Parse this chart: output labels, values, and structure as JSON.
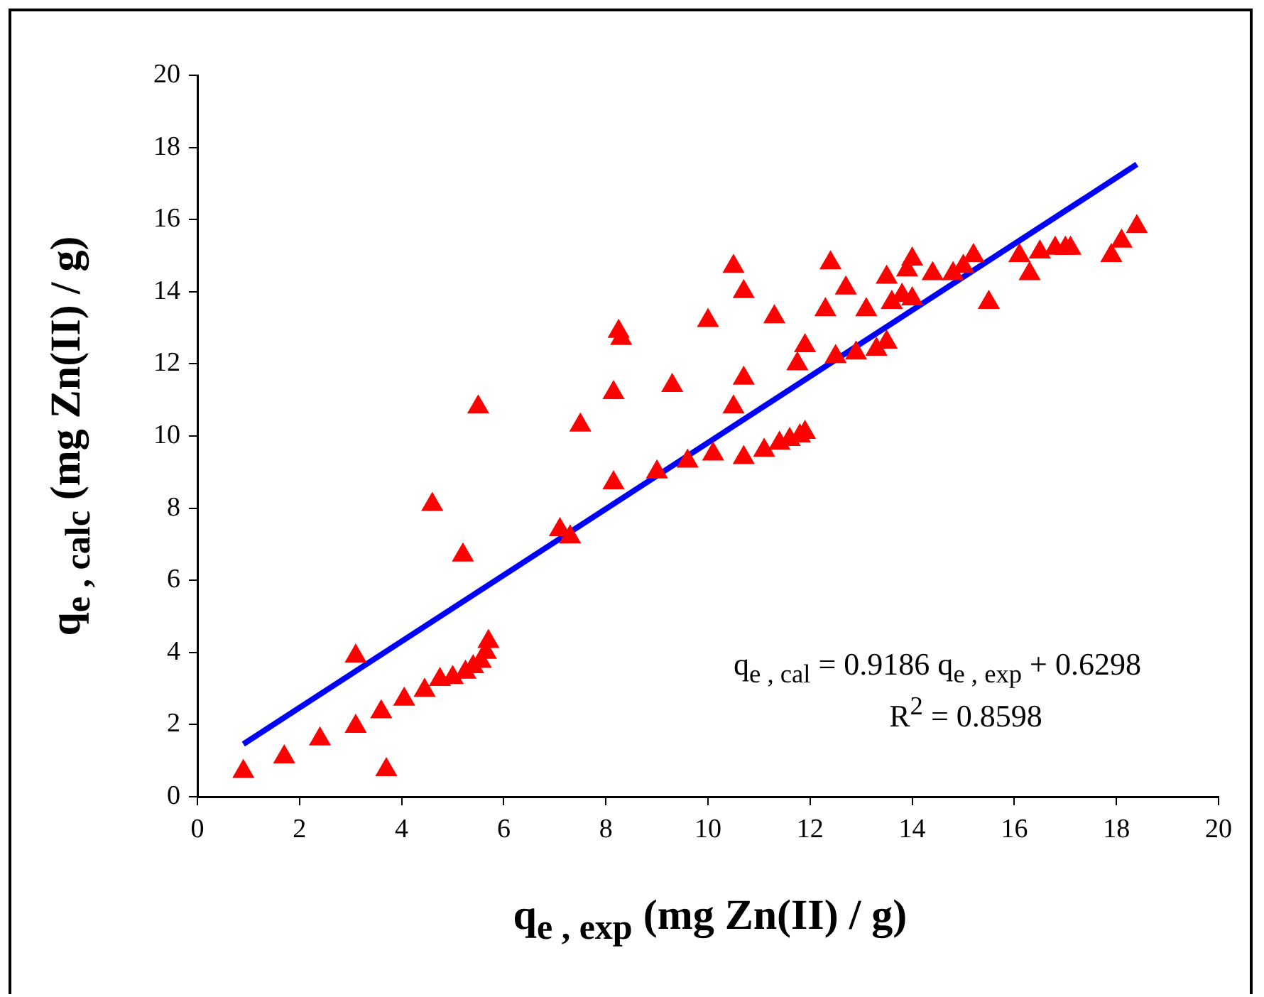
{
  "chart_data": {
    "type": "scatter",
    "xlabel": "q$_{e , exp}$  (mg  Zn(II) / g)",
    "ylabel": "q$_{e , calc}$  (mg  Zn(II) / g)",
    "xlim": [
      0,
      20
    ],
    "xticks": [
      0,
      2,
      4,
      6,
      8,
      10,
      12,
      14,
      16,
      18,
      20
    ],
    "ylim": [
      0,
      20
    ],
    "yticks": [
      0,
      2,
      4,
      6,
      8,
      10,
      12,
      14,
      16,
      18,
      20
    ],
    "grid": false,
    "legend": false,
    "marker": "triangle",
    "series": [
      {
        "color": "#ff0000",
        "x": [
          0.9,
          1.7,
          2.4,
          3.1,
          3.1,
          3.6,
          3.7,
          4.05,
          4.45,
          4.75,
          5.0,
          5.25,
          5.4,
          5.55,
          5.65,
          5.7,
          4.6,
          5.2,
          5.5,
          7.1,
          7.3,
          7.5,
          8.15,
          8.15,
          8.25,
          8.3,
          9.0,
          9.3,
          9.6,
          10.0,
          10.1,
          10.5,
          10.5,
          10.7,
          10.7,
          10.7,
          11.1,
          11.3,
          11.4,
          11.6,
          11.75,
          11.8,
          11.9,
          11.9,
          12.3,
          12.4,
          12.5,
          12.7,
          12.9,
          13.1,
          13.3,
          13.5,
          13.5,
          13.6,
          13.8,
          13.9,
          14.0,
          14.0,
          14.4,
          14.8,
          15.0,
          15.2,
          15.5,
          16.1,
          16.3,
          16.5,
          16.8,
          17.0,
          17.1,
          17.9,
          18.1,
          18.4
        ],
        "values": [
          0.7,
          1.1,
          1.6,
          1.95,
          3.9,
          2.35,
          0.75,
          2.7,
          2.95,
          3.25,
          3.3,
          3.45,
          3.6,
          3.75,
          4.0,
          4.3,
          8.1,
          6.7,
          10.8,
          7.4,
          7.2,
          10.3,
          8.7,
          11.2,
          12.9,
          12.7,
          9.0,
          11.4,
          9.3,
          13.2,
          9.5,
          14.7,
          10.8,
          14.0,
          11.6,
          9.4,
          9.6,
          13.3,
          9.8,
          9.9,
          12.0,
          10.0,
          12.5,
          10.1,
          13.5,
          14.8,
          12.2,
          14.1,
          12.3,
          13.5,
          12.4,
          12.6,
          14.4,
          13.7,
          13.9,
          14.6,
          14.9,
          13.8,
          14.5,
          14.5,
          14.7,
          15.0,
          13.7,
          15.0,
          14.5,
          15.1,
          15.2,
          15.2,
          15.2,
          15.0,
          15.4,
          15.8
        ]
      },
      {
        "type": "line",
        "marker": "none",
        "color": "#0000ff",
        "x": [
          0.9,
          18.4
        ],
        "values": [
          1.46,
          17.53
        ]
      }
    ],
    "annotations": [
      "q$_{e , cal}$ = 0.9186 q$_{e , exp}$ + 0.6298",
      "R$^{2}$ = 0.8598"
    ]
  }
}
